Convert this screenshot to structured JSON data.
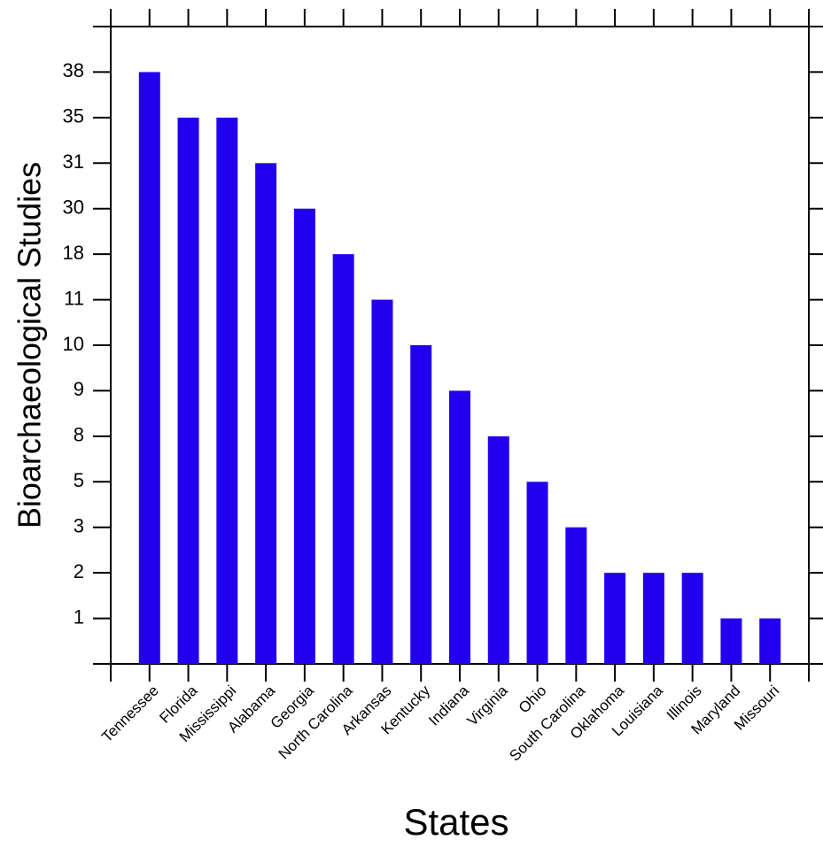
{
  "chart_data": {
    "type": "bar",
    "x_label": "States",
    "y_label": "Bioarchaeological Studies",
    "categories": [
      "Tennessee",
      "Florida",
      "Mississippi",
      "Alabama",
      "Georgia",
      "North Carolina",
      "Arkansas",
      "Kentucky",
      "Indiana",
      "Virginia",
      "Ohio",
      "South Carolina",
      "Oklahoma",
      "Louisiana",
      "Illinois",
      "Maryland",
      "Missouri"
    ],
    "values": [
      38,
      35,
      35,
      31,
      30,
      18,
      11,
      10,
      9,
      8,
      5,
      3,
      2,
      2,
      2,
      1,
      1
    ],
    "color": "#2200ee",
    "y_scale": "ordinal",
    "yticks": [
      1,
      2,
      3,
      5,
      8,
      9,
      10,
      11,
      18,
      30,
      31,
      35,
      38
    ]
  }
}
